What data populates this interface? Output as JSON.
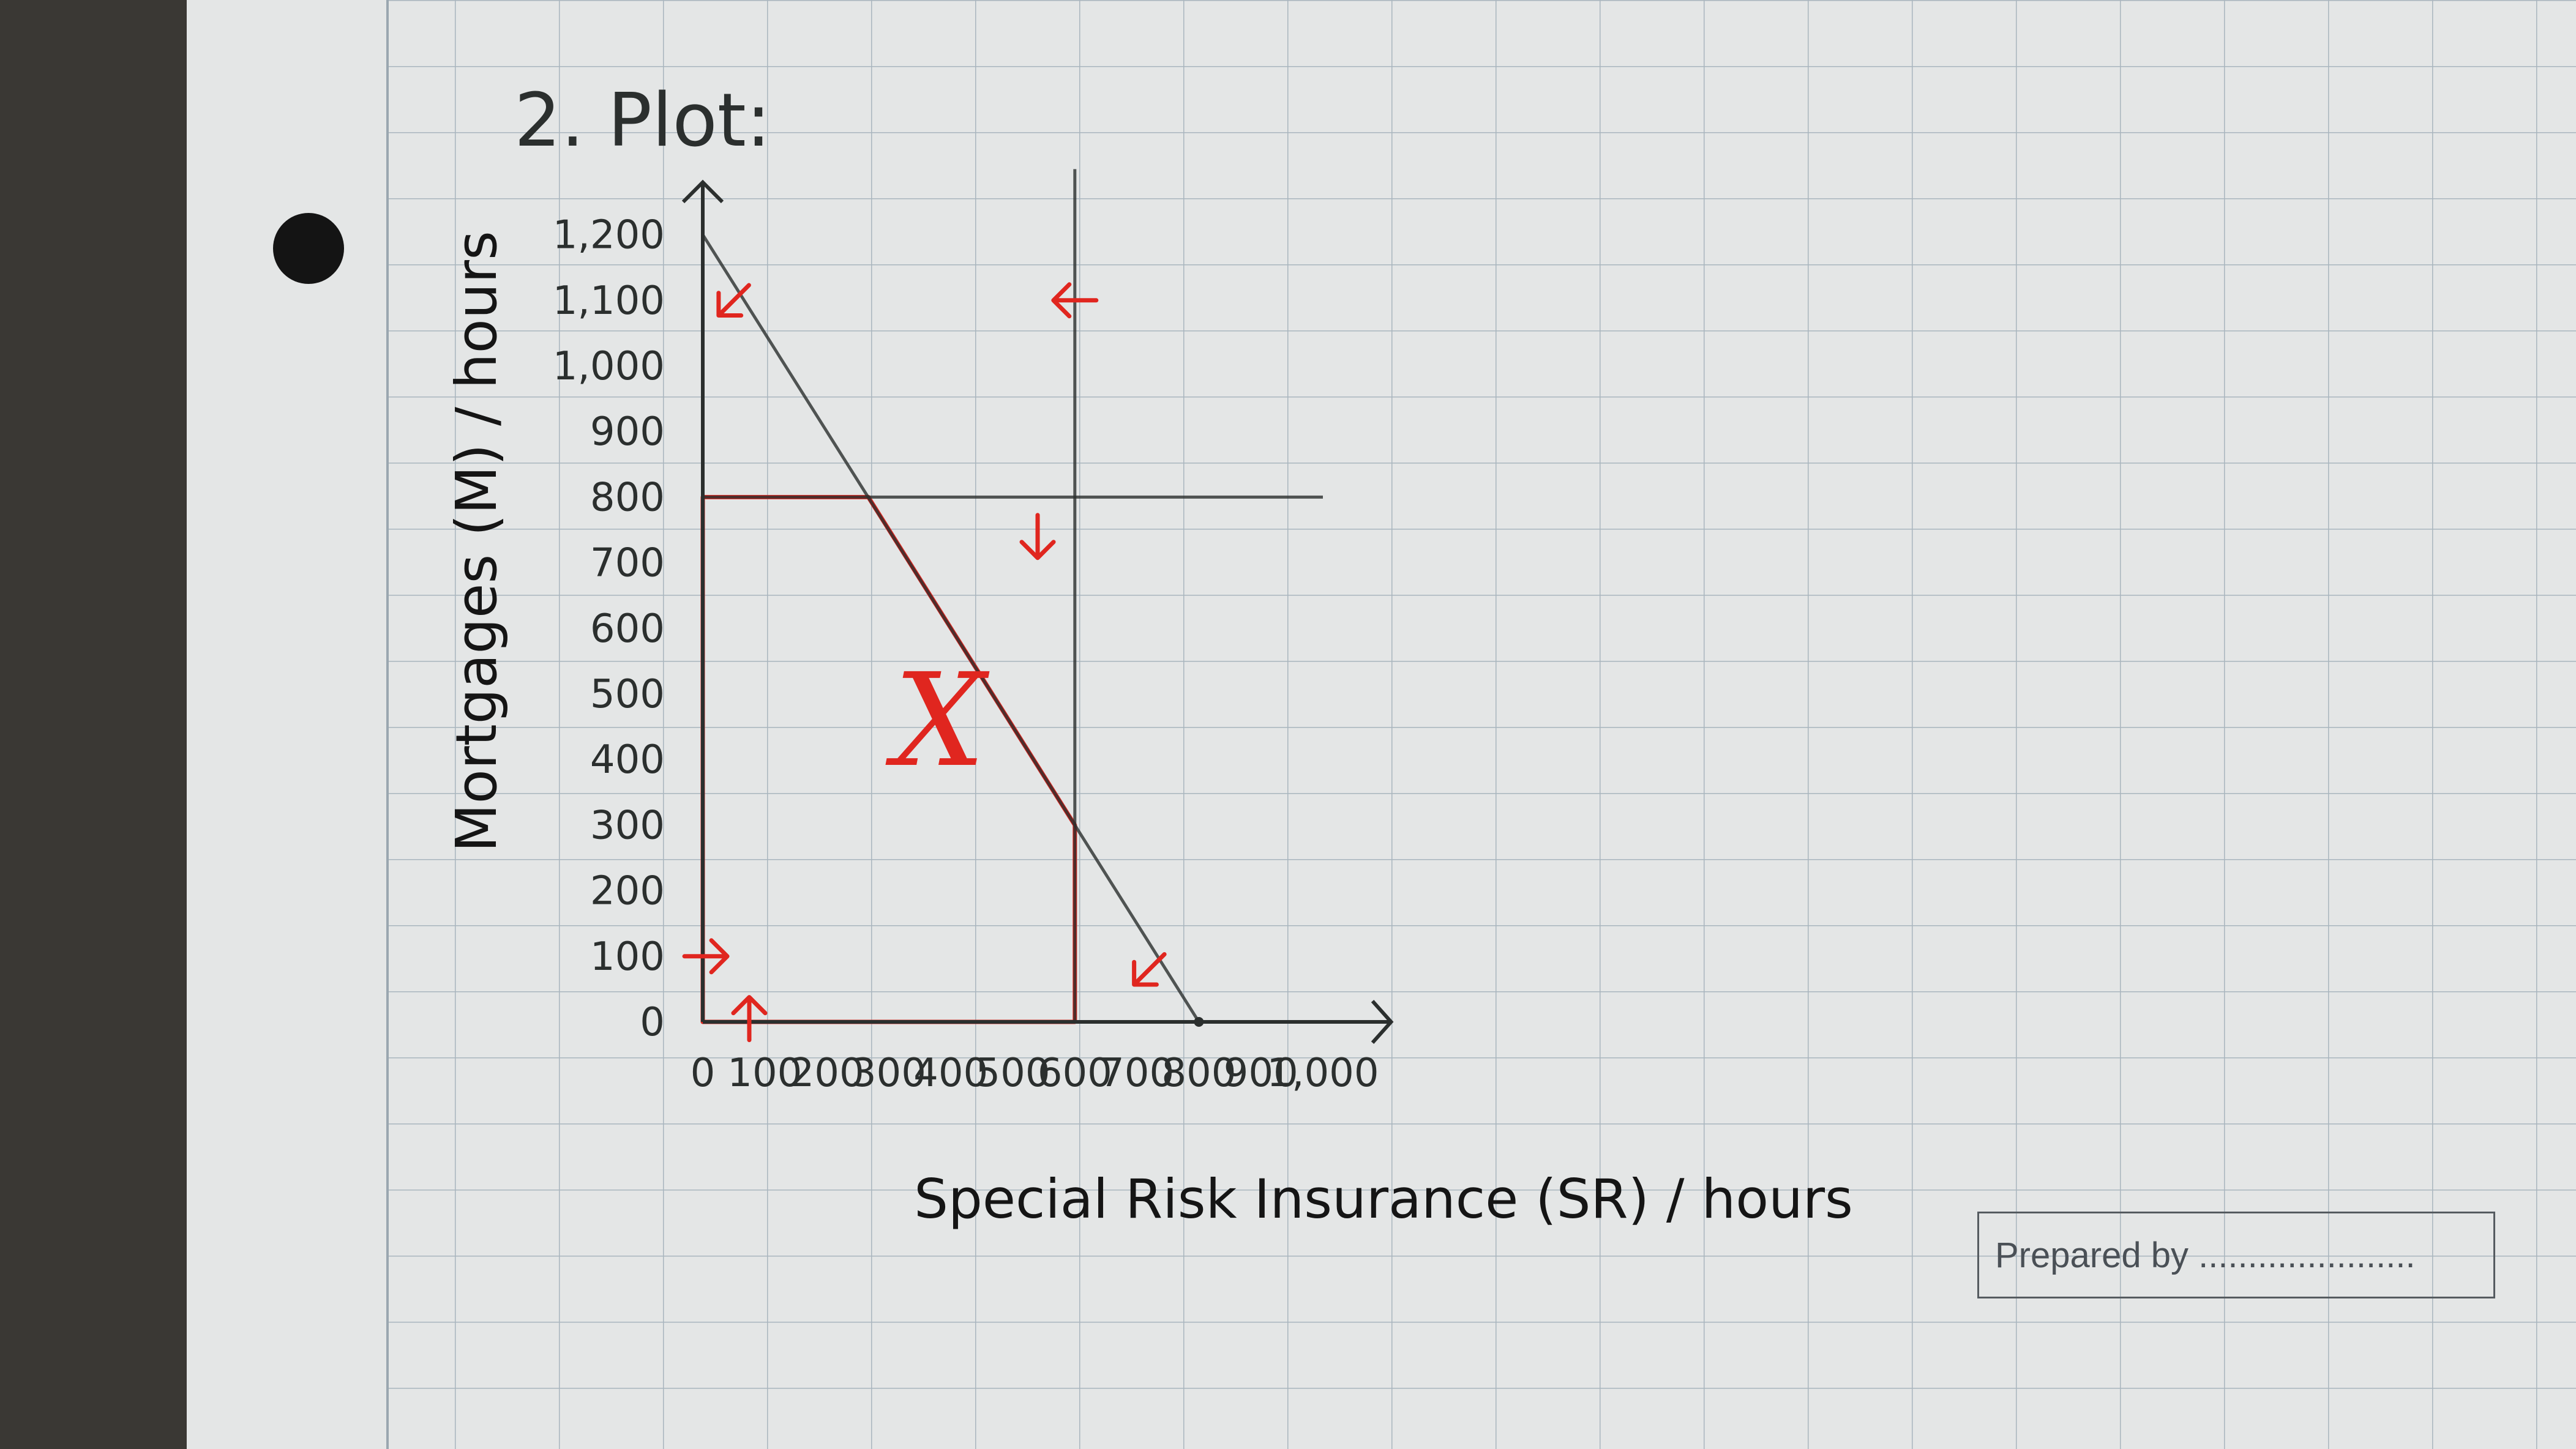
{
  "page": {
    "heading": "2. Plot:",
    "footer_box_text": "Prepared by ......................"
  },
  "colors": {
    "desk": "#3a3834",
    "paper": "#e4e6e6",
    "grid": "#a9b5be",
    "ink": "#2b2f2e",
    "red": "#e0261f"
  },
  "chart_data": {
    "type": "line",
    "xlabel": "Special Risk Insurance (SR) / hours",
    "ylabel": "Mortgages (M) / hours",
    "xlim": [
      0,
      1000
    ],
    "ylim": [
      0,
      1200
    ],
    "x_ticks": [
      "0",
      "100",
      "200",
      "300",
      "400",
      "500",
      "600",
      "700",
      "800",
      "900",
      "1,000"
    ],
    "x_tick_values": [
      0,
      100,
      200,
      300,
      400,
      500,
      600,
      700,
      800,
      900,
      1000
    ],
    "y_ticks": [
      "0",
      "100",
      "200",
      "300",
      "400",
      "500",
      "600",
      "700",
      "800",
      "900",
      "1,000",
      "1,100",
      "1,200"
    ],
    "y_tick_values": [
      0,
      100,
      200,
      300,
      400,
      500,
      600,
      700,
      800,
      900,
      1000,
      1100,
      1200
    ],
    "constraints": [
      {
        "points": [
          [
            0,
            1200
          ],
          [
            800,
            0
          ]
        ]
      },
      {
        "points": [
          [
            0,
            800
          ],
          [
            1000,
            800
          ]
        ]
      },
      {
        "points": [
          [
            600,
            0
          ],
          [
            600,
            1300
          ]
        ]
      }
    ],
    "feasible_region": {
      "label": "X",
      "polygon": [
        [
          0,
          0
        ],
        [
          0,
          800
        ],
        [
          267,
          800
        ],
        [
          600,
          300
        ],
        [
          600,
          0
        ]
      ]
    },
    "direction_arrows": [
      {
        "at": [
          50,
          1100
        ],
        "dir": [
          -1,
          -1
        ]
      },
      {
        "at": [
          600,
          1100
        ],
        "dir": [
          -1,
          0
        ]
      },
      {
        "at": [
          540,
          740
        ],
        "dir": [
          0,
          -1
        ]
      },
      {
        "at": [
          720,
          80
        ],
        "dir": [
          -1,
          -1
        ]
      },
      {
        "at": [
          5,
          100
        ],
        "dir": [
          1,
          0
        ]
      },
      {
        "at": [
          75,
          5
        ],
        "dir": [
          0,
          1
        ]
      }
    ]
  }
}
